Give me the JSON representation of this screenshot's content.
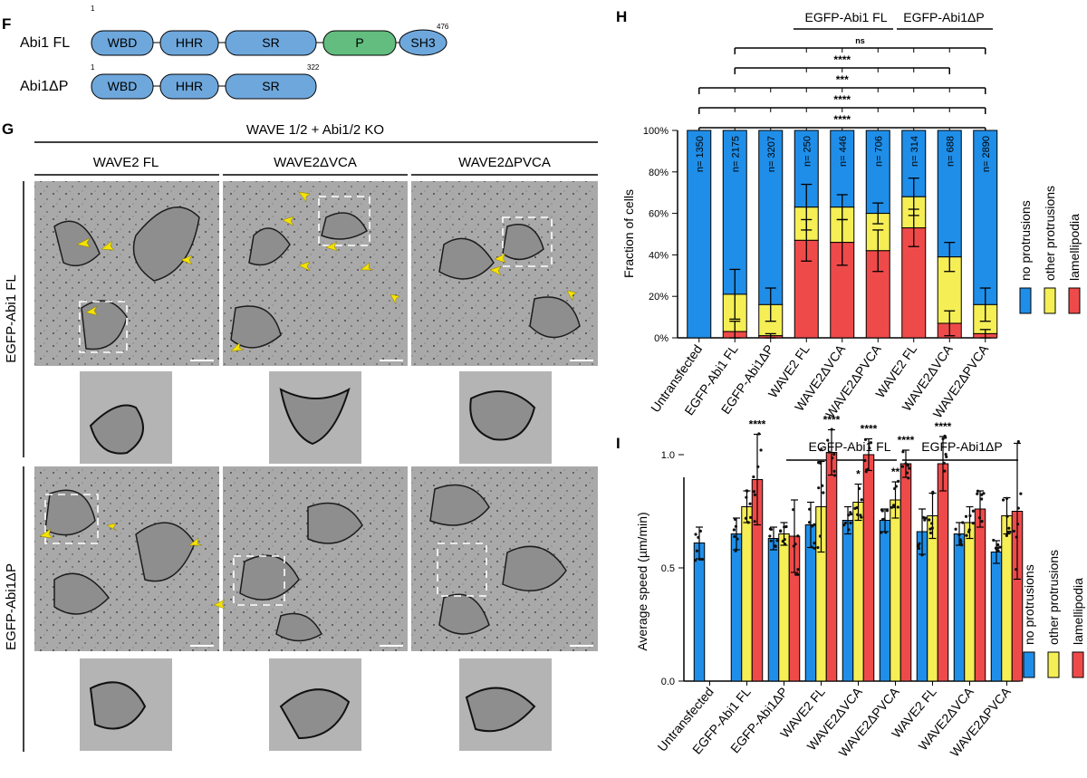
{
  "panel_letters": {
    "F": "F",
    "G": "G",
    "H": "H",
    "I": "I"
  },
  "panel_f": {
    "constructs": [
      {
        "label": "Abi1 FL",
        "start": "1",
        "end": "476",
        "domains": [
          "WBD",
          "HHR",
          "SR",
          "P",
          "SH3"
        ]
      },
      {
        "label": "Abi1ΔP",
        "start": "1",
        "end": "322",
        "domains": [
          "WBD",
          "HHR",
          "SR"
        ]
      }
    ],
    "colors": {
      "domain_blue": "#6ea7dc",
      "domain_green": "#62bd7e"
    }
  },
  "panel_g": {
    "title": "WAVE 1/2 + Abi1/2 KO",
    "columns": [
      "WAVE2 FL",
      "WAVE2ΔVCA",
      "WAVE2ΔPVCA"
    ],
    "rows": [
      "EGFP-Abi1 FL",
      "EGFP-Abi1ΔP"
    ],
    "arrowhead_color": "#f5e200"
  },
  "categories": [
    "Untransfected",
    "EGFP-Abi1 FL",
    "EGFP-Abi1ΔP",
    "WAVE2 FL",
    "WAVE2ΔVCA",
    "WAVE2ΔPVCA",
    "WAVE2 FL",
    "WAVE2ΔVCA",
    "WAVE2ΔPVCA"
  ],
  "legend": [
    "no protrusions",
    "other protrusions",
    "lamellipodia"
  ],
  "colors": {
    "blue": "#1f8ee8",
    "yellow": "#f5ee55",
    "red": "#ef4a4a"
  },
  "group_labels": [
    "EGFP-Abi1 FL",
    "EGFP-Abi1ΔP"
  ],
  "chart_data": [
    {
      "panel": "H",
      "type": "bar",
      "stacked": true,
      "ylabel": "Fraction of cells",
      "yticks": [
        "0%",
        "20%",
        "40%",
        "60%",
        "80%",
        "100%"
      ],
      "ylim": [
        0,
        100
      ],
      "n_labels": [
        "n= 1350",
        "n= 2175",
        "n= 3207",
        "n= 250",
        "n= 446",
        "n= 706",
        "n= 314",
        "n= 688",
        "n= 2890"
      ],
      "series": [
        {
          "name": "lamellipodia",
          "values": [
            0,
            3,
            1,
            47,
            46,
            42,
            53,
            7,
            2
          ],
          "err": [
            0,
            5,
            1,
            10,
            11,
            10,
            9,
            6,
            2
          ]
        },
        {
          "name": "other protrusions",
          "values": [
            0,
            18,
            15,
            16,
            17,
            18,
            15,
            32,
            14
          ],
          "err": [
            0,
            12,
            8,
            11,
            6,
            5,
            9,
            7,
            8
          ]
        },
        {
          "name": "no protrusions",
          "values": [
            100,
            79,
            84,
            37,
            37,
            40,
            32,
            61,
            84
          ]
        }
      ],
      "significance": [
        {
          "label": "ns",
          "from": 1,
          "to": 8,
          "ticks": [
            3,
            4,
            5,
            6,
            7,
            8
          ]
        },
        {
          "label": "****",
          "from": 1,
          "to": 7,
          "ticks": [
            3,
            4,
            5,
            6,
            7
          ]
        },
        {
          "label": "***",
          "from": 0,
          "to": 8,
          "ticks": [
            1,
            2,
            3,
            4,
            5,
            6,
            7
          ]
        },
        {
          "label": "****",
          "from": 0,
          "to": 8,
          "ticks": [
            1,
            2,
            3,
            4,
            5,
            6,
            7
          ]
        },
        {
          "label": "****",
          "from": 0,
          "to": 8,
          "ticks": [
            1,
            2,
            3,
            4,
            5,
            6,
            7
          ]
        }
      ]
    },
    {
      "panel": "I",
      "type": "bar",
      "ylabel": "Average speed (µm/min)",
      "yticks": [
        "0.0",
        "0.5",
        "1.0"
      ],
      "ylim": [
        0,
        1.3
      ],
      "series": [
        {
          "name": "no protrusions",
          "values": [
            0.61,
            0.65,
            0.63,
            0.69,
            0.71,
            0.71,
            0.66,
            0.65,
            0.57
          ],
          "err": [
            0.07,
            0.07,
            0.05,
            0.1,
            0.06,
            0.05,
            0.1,
            0.05,
            0.05
          ]
        },
        {
          "name": "other protrusions",
          "values": [
            null,
            0.77,
            0.65,
            0.77,
            0.79,
            0.8,
            0.73,
            0.7,
            0.73
          ],
          "err": [
            null,
            0.07,
            0.05,
            0.2,
            0.08,
            0.08,
            0.1,
            0.07,
            0.08
          ]
        },
        {
          "name": "lamellipodia",
          "values": [
            null,
            0.89,
            0.64,
            1.01,
            1.0,
            0.96,
            0.96,
            0.76,
            0.75
          ],
          "err": [
            null,
            0.2,
            0.16,
            0.1,
            0.07,
            0.06,
            0.12,
            0.08,
            0.3
          ]
        }
      ],
      "stars": [
        {
          "cat": 1,
          "series": 2,
          "label": "****"
        },
        {
          "cat": 3,
          "series": 1,
          "label": "*"
        },
        {
          "cat": 3,
          "series": 2,
          "label": "****"
        },
        {
          "cat": 4,
          "series": 1,
          "label": "*"
        },
        {
          "cat": 4,
          "series": 2,
          "label": "****"
        },
        {
          "cat": 5,
          "series": 1,
          "label": "**"
        },
        {
          "cat": 5,
          "series": 2,
          "label": "****"
        },
        {
          "cat": 6,
          "series": 2,
          "label": "****"
        }
      ]
    }
  ]
}
